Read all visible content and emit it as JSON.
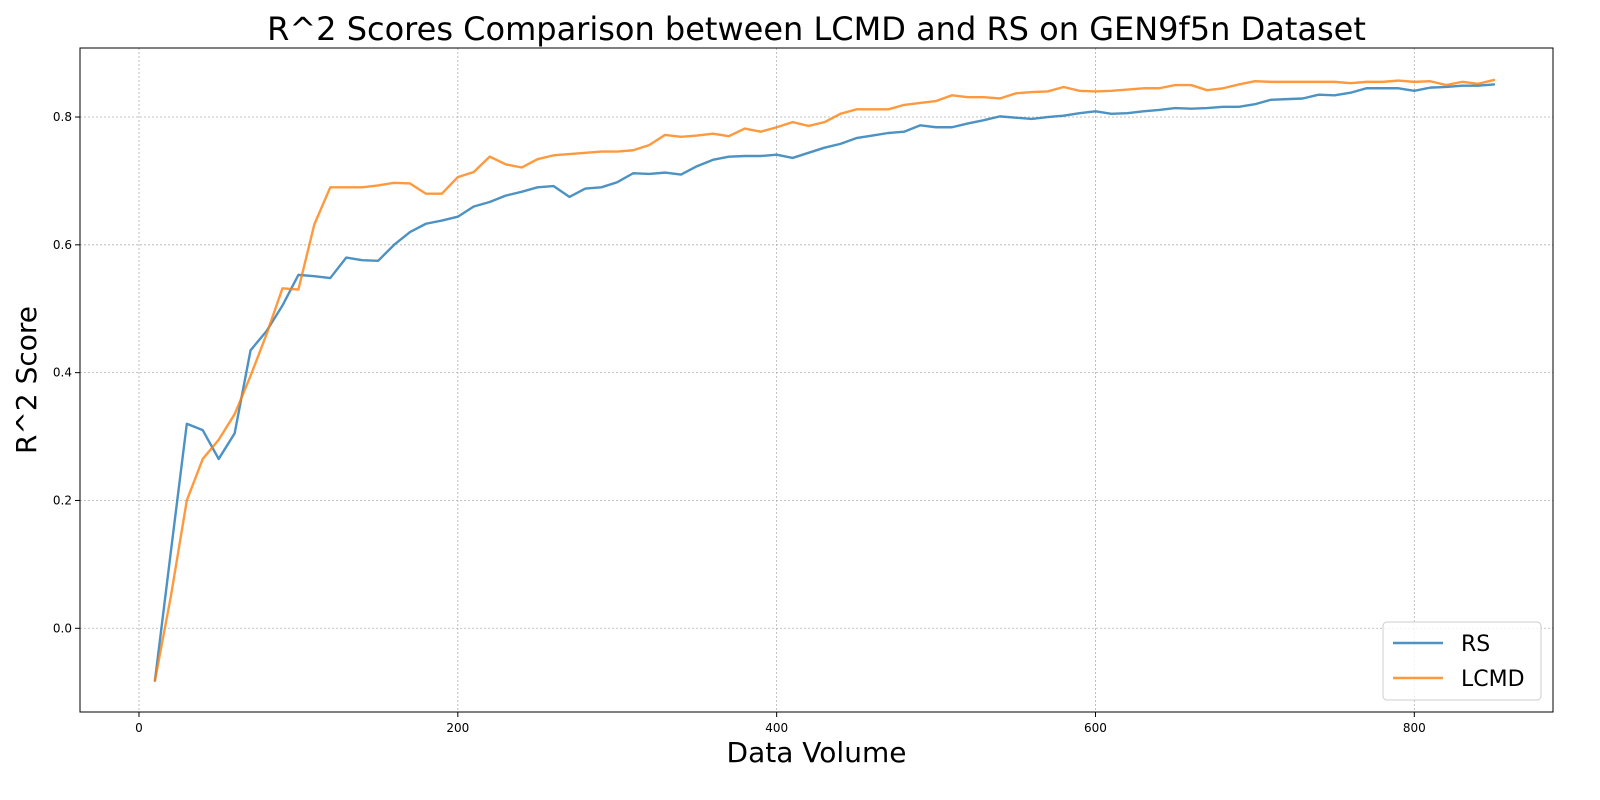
{
  "chart_data": {
    "type": "line",
    "title": "R^2 Scores Comparison between LCMD and RS on GEN9f5n Dataset",
    "xlabel": "Data Volume",
    "ylabel": "R^2 Score",
    "xlim": [
      -37,
      887
    ],
    "ylim": [
      -0.131,
      0.908
    ],
    "xticks": [
      0,
      200,
      400,
      600,
      800
    ],
    "xtick_labels": [
      "0",
      "200",
      "400",
      "600",
      "800"
    ],
    "yticks": [
      0.0,
      0.2,
      0.4,
      0.6,
      0.8
    ],
    "ytick_labels": [
      "0.0",
      "0.2",
      "0.4",
      "0.6",
      "0.8"
    ],
    "grid": true,
    "legend_position": "lower-right",
    "x": [
      10,
      20,
      30,
      40,
      50,
      60,
      70,
      80,
      90,
      100,
      110,
      120,
      130,
      140,
      150,
      160,
      170,
      180,
      190,
      200,
      210,
      220,
      230,
      240,
      250,
      260,
      270,
      280,
      290,
      300,
      310,
      320,
      330,
      340,
      350,
      360,
      370,
      380,
      390,
      400,
      410,
      420,
      430,
      440,
      450,
      460,
      470,
      480,
      490,
      500,
      510,
      520,
      530,
      540,
      550,
      560,
      570,
      580,
      590,
      600,
      610,
      620,
      630,
      640,
      650,
      660,
      670,
      680,
      690,
      700,
      710,
      720,
      730,
      740,
      750,
      760,
      770,
      780,
      790,
      800,
      810,
      820,
      830,
      840,
      850
    ],
    "series": [
      {
        "name": "RS",
        "color": "#1f77b4",
        "values": [
          -0.082,
          0.12,
          0.32,
          0.31,
          0.265,
          0.305,
          0.435,
          0.465,
          0.505,
          0.553,
          0.551,
          0.548,
          0.58,
          0.576,
          0.575,
          0.6,
          0.62,
          0.633,
          0.638,
          0.644,
          0.66,
          0.667,
          0.677,
          0.683,
          0.69,
          0.692,
          0.675,
          0.688,
          0.69,
          0.698,
          0.712,
          0.711,
          0.713,
          0.71,
          0.723,
          0.733,
          0.738,
          0.739,
          0.739,
          0.741,
          0.736,
          0.744,
          0.752,
          0.758,
          0.767,
          0.771,
          0.775,
          0.777,
          0.787,
          0.784,
          0.784,
          0.79,
          0.795,
          0.801,
          0.799,
          0.797,
          0.8,
          0.802,
          0.806,
          0.809,
          0.805,
          0.806,
          0.809,
          0.811,
          0.814,
          0.813,
          0.814,
          0.816,
          0.816,
          0.82,
          0.827,
          0.828,
          0.829,
          0.835,
          0.834,
          0.838,
          0.845,
          0.845,
          0.845,
          0.841,
          0.846,
          0.847,
          0.849,
          0.849,
          0.851
        ]
      },
      {
        "name": "LCMD",
        "color": "#ff7f0e",
        "values": [
          -0.082,
          0.05,
          0.2,
          0.265,
          0.295,
          0.335,
          0.395,
          0.46,
          0.532,
          0.53,
          0.632,
          0.69,
          0.69,
          0.69,
          0.693,
          0.697,
          0.696,
          0.68,
          0.68,
          0.706,
          0.714,
          0.738,
          0.726,
          0.721,
          0.734,
          0.74,
          0.742,
          0.744,
          0.746,
          0.746,
          0.748,
          0.756,
          0.772,
          0.769,
          0.771,
          0.774,
          0.77,
          0.782,
          0.777,
          0.784,
          0.792,
          0.786,
          0.792,
          0.805,
          0.812,
          0.812,
          0.812,
          0.819,
          0.822,
          0.825,
          0.834,
          0.831,
          0.831,
          0.829,
          0.837,
          0.839,
          0.84,
          0.847,
          0.841,
          0.84,
          0.841,
          0.843,
          0.845,
          0.845,
          0.85,
          0.85,
          0.842,
          0.845,
          0.851,
          0.856,
          0.855,
          0.855,
          0.855,
          0.855,
          0.855,
          0.853,
          0.855,
          0.855,
          0.857,
          0.855,
          0.856,
          0.85,
          0.855,
          0.852,
          0.858
        ]
      }
    ]
  }
}
